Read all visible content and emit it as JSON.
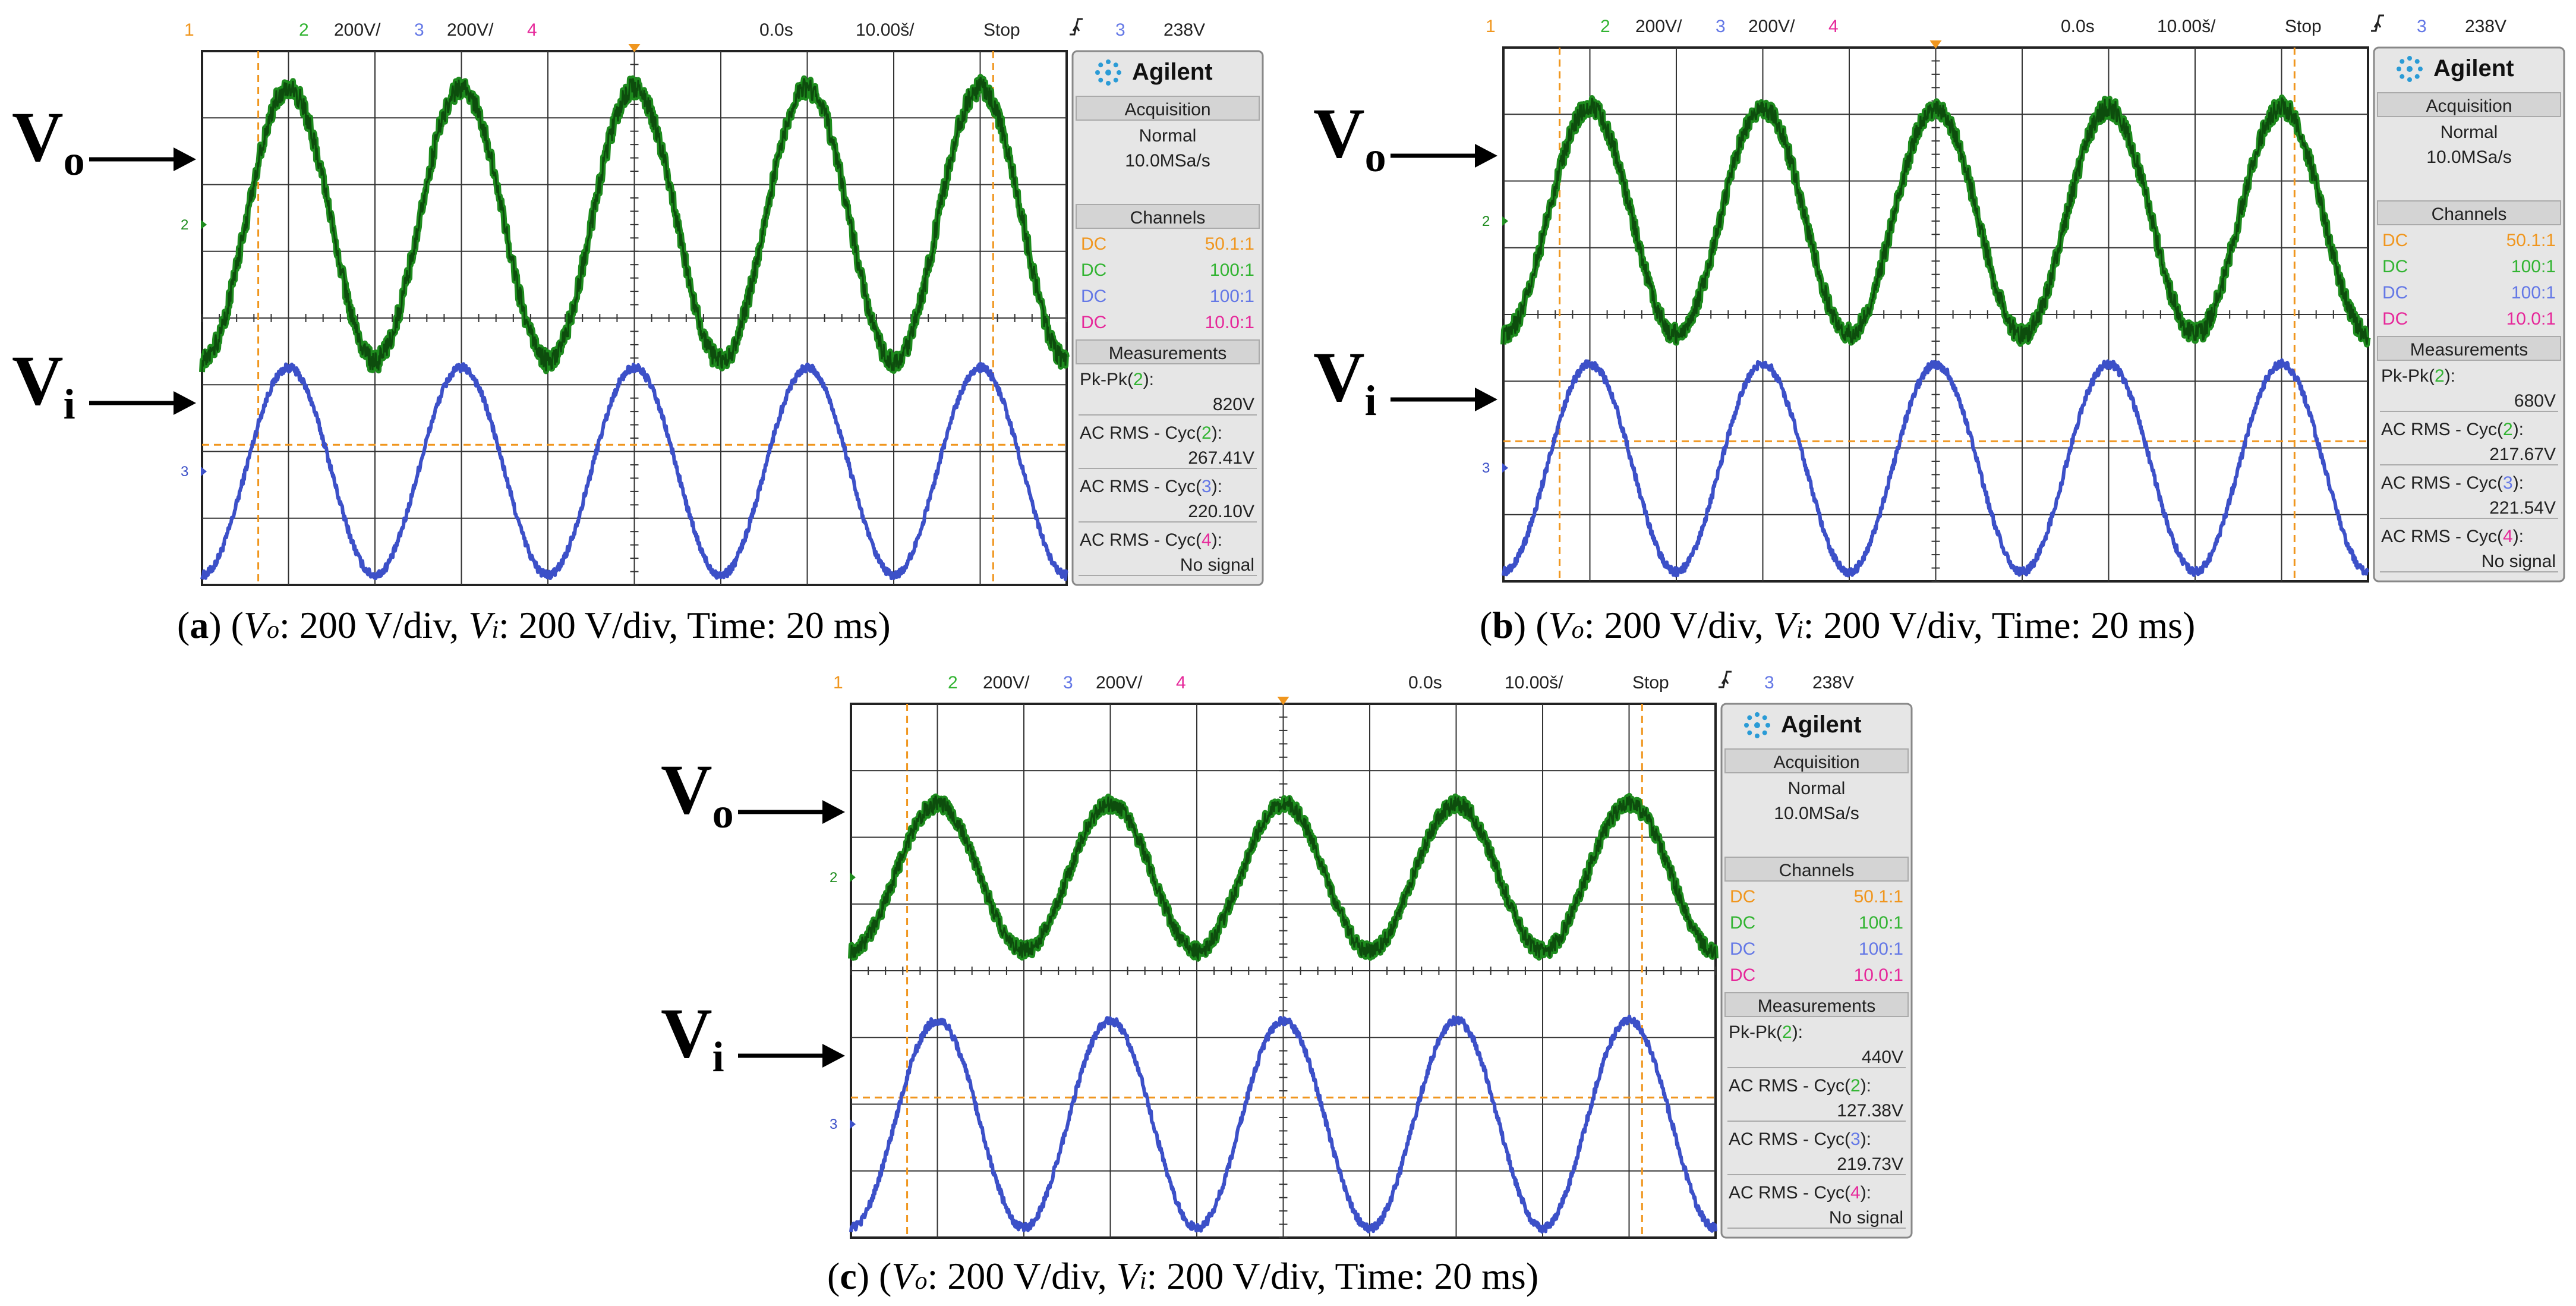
{
  "panels": [
    {
      "id": "a",
      "top_bar": {
        "ch1": "1",
        "ch2": "2",
        "ch2_scale": "200V/",
        "ch3": "3",
        "ch3_scale": "200V/",
        "ch4": "4",
        "time_offset": "0.0s",
        "timebase": "10.00š/",
        "run_state": "Stop",
        "trigger_icon": "trigger-edge-icon",
        "trigger_ch": "3",
        "trigger_level": "238V"
      },
      "side_panel": {
        "brand": "Agilent",
        "acquisition_title": "Acquisition",
        "acquisition_mode": "Normal",
        "sample_rate": "10.0MSa/s",
        "channels_title": "Channels",
        "channels": [
          {
            "coupling": "DC",
            "probe": "50.1:1",
            "color": "#f0961e"
          },
          {
            "coupling": "DC",
            "probe": "100:1",
            "color": "#32b432"
          },
          {
            "coupling": "DC",
            "probe": "100:1",
            "color": "#6478e6"
          },
          {
            "coupling": "DC",
            "probe": "10.0:1",
            "color": "#e6289a"
          }
        ],
        "measurements_title": "Measurements",
        "measurements": [
          {
            "label": "Pk-Pk(",
            "ch": "2",
            "tail": "):",
            "value": "820V",
            "ch_color": "#32b432"
          },
          {
            "label": "AC RMS - Cyc(",
            "ch": "2",
            "tail": "):",
            "value": "267.41V",
            "ch_color": "#32b432"
          },
          {
            "label": "AC RMS - Cyc(",
            "ch": "3",
            "tail": "):",
            "value": "220.10V",
            "ch_color": "#6478e6"
          },
          {
            "label": "AC RMS - Cyc(",
            "ch": "4",
            "tail": "):",
            "value": "No signal",
            "ch_color": "#e6289a"
          }
        ]
      },
      "labels": {
        "vo": "V",
        "vo_sub": "o",
        "vi": "V",
        "vi_sub": "i"
      },
      "caption": {
        "letter": "a",
        "vo": "V",
        "vo_sub": "o",
        "vo_text": ": 200 V/div, ",
        "vi": "V",
        "vi_sub": "i",
        "vi_text": ": 200 V/div, Time: 20 ms)"
      }
    },
    {
      "id": "b",
      "top_bar": {
        "ch1": "1",
        "ch2": "2",
        "ch2_scale": "200V/",
        "ch3": "3",
        "ch3_scale": "200V/",
        "ch4": "4",
        "time_offset": "0.0s",
        "timebase": "10.00š/",
        "run_state": "Stop",
        "trigger_icon": "trigger-edge-icon",
        "trigger_ch": "3",
        "trigger_level": "238V"
      },
      "side_panel": {
        "brand": "Agilent",
        "acquisition_title": "Acquisition",
        "acquisition_mode": "Normal",
        "sample_rate": "10.0MSa/s",
        "channels_title": "Channels",
        "channels": [
          {
            "coupling": "DC",
            "probe": "50.1:1",
            "color": "#f0961e"
          },
          {
            "coupling": "DC",
            "probe": "100:1",
            "color": "#32b432"
          },
          {
            "coupling": "DC",
            "probe": "100:1",
            "color": "#6478e6"
          },
          {
            "coupling": "DC",
            "probe": "10.0:1",
            "color": "#e6289a"
          }
        ],
        "measurements_title": "Measurements",
        "measurements": [
          {
            "label": "Pk-Pk(",
            "ch": "2",
            "tail": "):",
            "value": "680V",
            "ch_color": "#32b432"
          },
          {
            "label": "AC RMS - Cyc(",
            "ch": "2",
            "tail": "):",
            "value": "217.67V",
            "ch_color": "#32b432"
          },
          {
            "label": "AC RMS - Cyc(",
            "ch": "3",
            "tail": "):",
            "value": "221.54V",
            "ch_color": "#6478e6"
          },
          {
            "label": "AC RMS - Cyc(",
            "ch": "4",
            "tail": "):",
            "value": "No signal",
            "ch_color": "#e6289a"
          }
        ]
      },
      "labels": {
        "vo": "V",
        "vo_sub": "o",
        "vi": "V",
        "vi_sub": "i"
      },
      "caption": {
        "letter": "b",
        "vo": "V",
        "vo_sub": "o",
        "vo_text": ": 200 V/div, ",
        "vi": "V",
        "vi_sub": "i",
        "vi_text": ": 200 V/div, Time: 20 ms)"
      }
    },
    {
      "id": "c",
      "top_bar": {
        "ch1": "1",
        "ch2": "2",
        "ch2_scale": "200V/",
        "ch3": "3",
        "ch3_scale": "200V/",
        "ch4": "4",
        "time_offset": "0.0s",
        "timebase": "10.00š/",
        "run_state": "Stop",
        "trigger_icon": "trigger-edge-icon",
        "trigger_ch": "3",
        "trigger_level": "238V"
      },
      "side_panel": {
        "brand": "Agilent",
        "acquisition_title": "Acquisition",
        "acquisition_mode": "Normal",
        "sample_rate": "10.0MSa/s",
        "channels_title": "Channels",
        "channels": [
          {
            "coupling": "DC",
            "probe": "50.1:1",
            "color": "#f0961e"
          },
          {
            "coupling": "DC",
            "probe": "100:1",
            "color": "#32b432"
          },
          {
            "coupling": "DC",
            "probe": "100:1",
            "color": "#6478e6"
          },
          {
            "coupling": "DC",
            "probe": "10.0:1",
            "color": "#e6289a"
          }
        ],
        "measurements_title": "Measurements",
        "measurements": [
          {
            "label": "Pk-Pk(",
            "ch": "2",
            "tail": "):",
            "value": "440V",
            "ch_color": "#32b432"
          },
          {
            "label": "AC RMS - Cyc(",
            "ch": "2",
            "tail": "):",
            "value": "127.38V",
            "ch_color": "#32b432"
          },
          {
            "label": "AC RMS - Cyc(",
            "ch": "3",
            "tail": "):",
            "value": "219.73V",
            "ch_color": "#6478e6"
          },
          {
            "label": "AC RMS - Cyc(",
            "ch": "4",
            "tail": "):",
            "value": "No signal",
            "ch_color": "#e6289a"
          }
        ]
      },
      "labels": {
        "vo": "V",
        "vo_sub": "o",
        "vi": "V",
        "vi_sub": "i"
      },
      "caption": {
        "letter": "c",
        "vo": "V",
        "vo_sub": "o",
        "vo_text": ": 200 V/div, ",
        "vi": "V",
        "vi_sub": "i",
        "vi_text": ": 200 V/div, Time: 20 ms)"
      }
    }
  ],
  "chart_data": [
    {
      "type": "line",
      "panel": "a",
      "x_unit": "ms",
      "x_range": [
        -50,
        50
      ],
      "x_div": 10,
      "y_unit": "V",
      "y_div": 200,
      "series": [
        {
          "name": "",
          "channel": 3,
          "color": "#3c50c8",
          "kind": "sine",
          "peak_v": 311,
          "period_ms": 20,
          "phase_deg": 90,
          "ground_div": -2.3,
          "noise": 0.04
        },
        {
          "name": "",
          "channel": 2,
          "color": "#1e8c1e",
          "kind": "sine",
          "peak_v": 410,
          "period_ms": 20,
          "phase_deg": 90,
          "ground_div": 1.4,
          "noise": 0.08
        }
      ],
      "cursors_x_ms": [
        -43.5,
        41.5
      ],
      "cursor_y_div": -1.9
    },
    {
      "type": "line",
      "panel": "b",
      "x_unit": "ms",
      "x_range": [
        -50,
        50
      ],
      "x_div": 10,
      "y_unit": "V",
      "y_div": 200,
      "series": [
        {
          "name": "",
          "channel": 3,
          "color": "#3c50c8",
          "kind": "sine",
          "peak_v": 311,
          "period_ms": 20,
          "phase_deg": 90,
          "ground_div": -2.3,
          "noise": 0.04
        },
        {
          "name": "",
          "channel": 2,
          "color": "#1e8c1e",
          "kind": "sine",
          "peak_v": 340,
          "period_ms": 20,
          "phase_deg": 90,
          "ground_div": 1.4,
          "noise": 0.09
        }
      ],
      "cursors_x_ms": [
        -43.5,
        41.5
      ],
      "cursor_y_div": -1.9
    },
    {
      "type": "line",
      "panel": "c",
      "x_unit": "ms",
      "x_range": [
        -50,
        50
      ],
      "x_div": 10,
      "y_unit": "V",
      "y_div": 200,
      "series": [
        {
          "name": "",
          "channel": 3,
          "color": "#3c50c8",
          "kind": "sine",
          "peak_v": 311,
          "period_ms": 20,
          "phase_deg": 90,
          "ground_div": -2.3,
          "noise": 0.04
        },
        {
          "name": "",
          "channel": 2,
          "color": "#1e8c1e",
          "kind": "sine",
          "peak_v": 220,
          "period_ms": 20,
          "phase_deg": 90,
          "ground_div": 1.4,
          "noise": 0.11
        }
      ],
      "cursors_x_ms": [
        -43.5,
        41.5
      ],
      "cursor_y_div": -1.9
    }
  ]
}
